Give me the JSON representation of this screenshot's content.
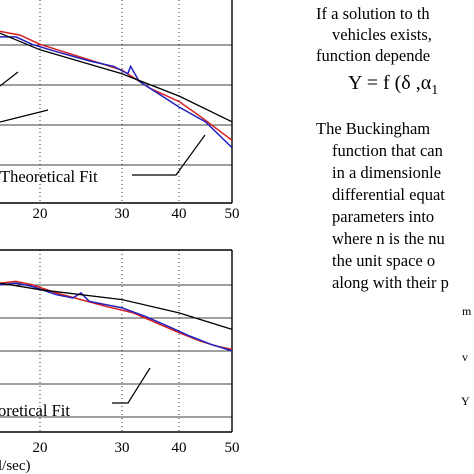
{
  "chart_data": [
    {
      "type": "line",
      "title": "",
      "xlabel": "",
      "ylabel": "",
      "x_ticks": [
        "20",
        "30",
        "40",
        "50"
      ],
      "xlim": [
        10,
        50
      ],
      "grid": true,
      "annotation": "Theoretical Fit",
      "colors": {
        "measured_a": "#d62020",
        "measured_b": "#2020c0",
        "fit": "#000000"
      },
      "series": [
        {
          "values": [
            [
              10,
              0.93
            ],
            [
              15,
              0.91
            ],
            [
              20,
              0.86
            ],
            [
              25,
              0.79
            ],
            [
              30,
              0.72
            ],
            [
              35,
              0.62
            ],
            [
              40,
              0.55
            ],
            [
              44,
              0.47
            ],
            [
              50,
              0.34
            ]
          ]
        },
        {
          "values": [
            [
              10,
              0.9
            ],
            [
              14,
              0.9
            ],
            [
              18,
              0.86
            ],
            [
              22,
              0.82
            ],
            [
              26,
              0.77
            ],
            [
              29,
              0.74
            ],
            [
              31,
              0.7
            ],
            [
              31.5,
              0.74
            ],
            [
              33,
              0.66
            ],
            [
              36,
              0.6
            ],
            [
              40,
              0.52
            ],
            [
              45,
              0.44
            ],
            [
              50,
              0.3
            ]
          ]
        },
        {
          "values": [
            [
              10,
              0.92
            ],
            [
              20,
              0.83
            ],
            [
              30,
              0.7
            ],
            [
              40,
              0.58
            ],
            [
              50,
              0.44
            ]
          ]
        }
      ]
    },
    {
      "type": "line",
      "title": "",
      "xlabel": "l/sec)",
      "ylabel": "",
      "x_ticks": [
        "20",
        "30",
        "40",
        "50"
      ],
      "xlim": [
        10,
        50
      ],
      "grid": true,
      "annotation": "oretical Fit",
      "colors": {
        "measured_a": "#d62020",
        "measured_b": "#2020c0",
        "fit": "#000000"
      },
      "series": [
        {
          "values": [
            [
              10,
              0.9
            ],
            [
              14,
              0.91
            ],
            [
              18,
              0.89
            ],
            [
              22,
              0.84
            ],
            [
              25,
              0.8
            ],
            [
              28,
              0.76
            ],
            [
              32,
              0.72
            ],
            [
              36,
              0.66
            ],
            [
              40,
              0.6
            ],
            [
              44,
              0.55
            ],
            [
              47,
              0.52
            ],
            [
              50,
              0.5
            ]
          ]
        },
        {
          "values": [
            [
              10,
              0.89
            ],
            [
              14,
              0.9
            ],
            [
              18,
              0.88
            ],
            [
              22,
              0.83
            ],
            [
              24,
              0.81
            ],
            [
              25,
              0.84
            ],
            [
              26,
              0.79
            ],
            [
              30,
              0.75
            ],
            [
              34,
              0.7
            ],
            [
              38,
              0.64
            ],
            [
              42,
              0.58
            ],
            [
              46,
              0.53
            ],
            [
              50,
              0.49
            ]
          ]
        },
        {
          "values": [
            [
              10,
              0.9
            ],
            [
              20,
              0.86
            ],
            [
              30,
              0.8
            ],
            [
              40,
              0.72
            ],
            [
              50,
              0.62
            ]
          ]
        }
      ]
    }
  ],
  "text": {
    "lines": [
      "If a solution to th",
      "vehicles exists,",
      "function depende",
      "The Buckingham",
      "function that can",
      "in a dimensionle",
      "differential equat",
      "parameters into",
      "where n is the nu",
      "the unit space o",
      "along with their p"
    ],
    "formula": "Y = f (δ ,α",
    "formula_sub": "1",
    "symbols": [
      "m",
      "v",
      "Y"
    ]
  }
}
